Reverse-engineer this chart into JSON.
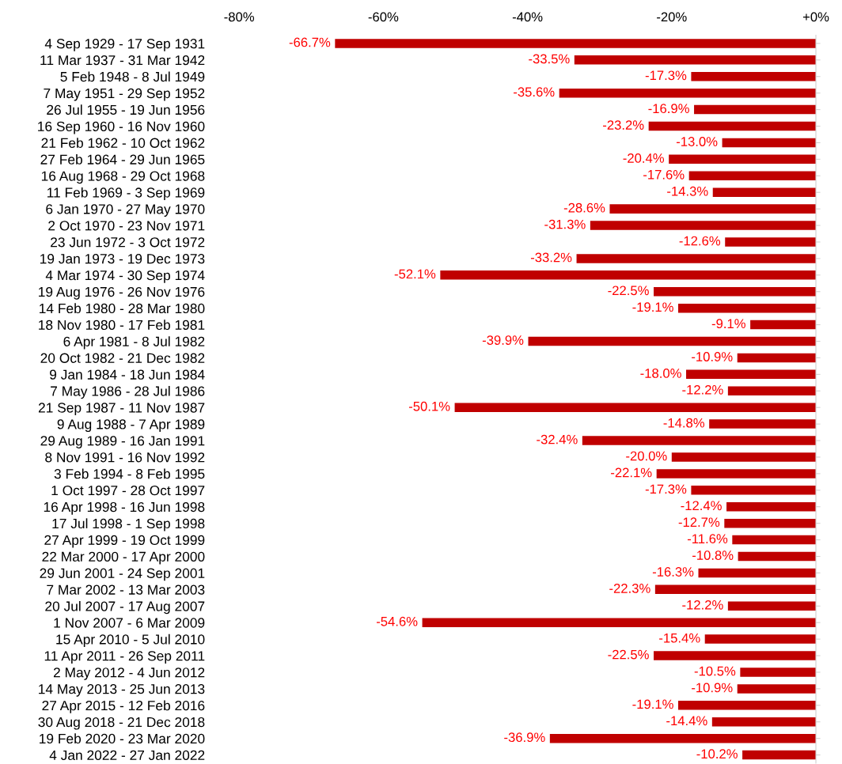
{
  "chart_data": {
    "type": "bar",
    "orientation": "horizontal",
    "categories": [
      "4 Sep 1929 - 17 Sep 1931",
      "11 Mar 1937 - 31 Mar 1942",
      "5 Feb 1948 - 8 Jul 1949",
      "7 May 1951 - 29 Sep 1952",
      "26 Jul 1955 - 19 Jun 1956",
      "16 Sep 1960 - 16 Nov 1960",
      "21 Feb 1962 - 10 Oct 1962",
      "27 Feb 1964 - 29 Jun 1965",
      "16 Aug 1968 - 29 Oct 1968",
      "11 Feb 1969 - 3 Sep 1969",
      "6 Jan 1970 - 27 May 1970",
      "2 Oct 1970 - 23 Nov 1971",
      "23 Jun 1972 - 3 Oct 1972",
      "19 Jan 1973 - 19 Dec 1973",
      "4 Mar 1974 - 30 Sep 1974",
      "19 Aug 1976 - 26 Nov 1976",
      "14 Feb 1980 - 28 Mar 1980",
      "18 Nov 1980 - 17 Feb 1981",
      "6 Apr 1981 - 8 Jul 1982",
      "20 Oct 1982 - 21 Dec 1982",
      "9 Jan 1984 - 18 Jun 1984",
      "7 May 1986 - 28 Jul 1986",
      "21 Sep 1987 - 11 Nov 1987",
      "9 Aug 1988 - 7 Apr 1989",
      "29 Aug 1989 - 16 Jan 1991",
      "8 Nov 1991 - 16 Nov 1992",
      "3 Feb 1994 - 8 Feb 1995",
      "1 Oct 1997 - 28 Oct 1997",
      "16 Apr 1998 - 16 Jun 1998",
      "17 Jul 1998 - 1 Sep 1998",
      "27 Apr 1999 - 19 Oct 1999",
      "22 Mar 2000 - 17 Apr 2000",
      "29 Jun 2001 - 24 Sep 2001",
      "7 Mar 2002 - 13 Mar 2003",
      "20 Jul 2007 - 17 Aug 2007",
      "1 Nov 2007 - 6 Mar 2009",
      "15 Apr 2010 - 5 Jul 2010",
      "11 Apr 2011 - 26 Sep 2011",
      "2 May 2012 - 4 Jun 2012",
      "14 May 2013 - 25 Jun 2013",
      "27 Apr 2015 - 12 Feb 2016",
      "30 Aug 2018 - 21 Dec 2018",
      "19 Feb 2020 - 23 Mar 2020",
      "4 Jan 2022 - 27 Jan 2022"
    ],
    "values": [
      -66.7,
      -33.5,
      -17.3,
      -35.6,
      -16.9,
      -23.2,
      -13.0,
      -20.4,
      -17.6,
      -14.3,
      -28.6,
      -31.3,
      -12.6,
      -33.2,
      -52.1,
      -22.5,
      -19.1,
      -9.1,
      -39.9,
      -10.9,
      -18.0,
      -12.2,
      -50.1,
      -14.8,
      -32.4,
      -20.0,
      -22.1,
      -17.3,
      -12.4,
      -12.7,
      -11.6,
      -10.8,
      -16.3,
      -22.3,
      -12.2,
      -54.6,
      -15.4,
      -22.5,
      -10.5,
      -10.9,
      -19.1,
      -14.4,
      -36.9,
      -10.2
    ],
    "value_labels": [
      "-66.7%",
      "-33.5%",
      "-17.3%",
      "-35.6%",
      "-16.9%",
      "-23.2%",
      "-13.0%",
      "-20.4%",
      "-17.6%",
      "-14.3%",
      "-28.6%",
      "-31.3%",
      "-12.6%",
      "-33.2%",
      "-52.1%",
      "-22.5%",
      "-19.1%",
      "-9.1%",
      "-39.9%",
      "-10.9%",
      "-18.0%",
      "-12.2%",
      "-50.1%",
      "-14.8%",
      "-32.4%",
      "-20.0%",
      "-22.1%",
      "-17.3%",
      "-12.4%",
      "-12.7%",
      "-11.6%",
      "-10.8%",
      "-16.3%",
      "-22.3%",
      "-12.2%",
      "-54.6%",
      "-15.4%",
      "-22.5%",
      "-10.5%",
      "-10.9%",
      "-19.1%",
      "-14.4%",
      "-36.9%",
      "-10.2%"
    ],
    "color": "#c00000",
    "xlim": [
      -80,
      0
    ],
    "xticks": [
      {
        "value": -80,
        "label": "-80%"
      },
      {
        "value": -60,
        "label": "-60%"
      },
      {
        "value": -40,
        "label": "-40%"
      },
      {
        "value": -20,
        "label": "-20%"
      },
      {
        "value": 0,
        "label": "+0%"
      }
    ],
    "grid": false,
    "legend": false
  }
}
